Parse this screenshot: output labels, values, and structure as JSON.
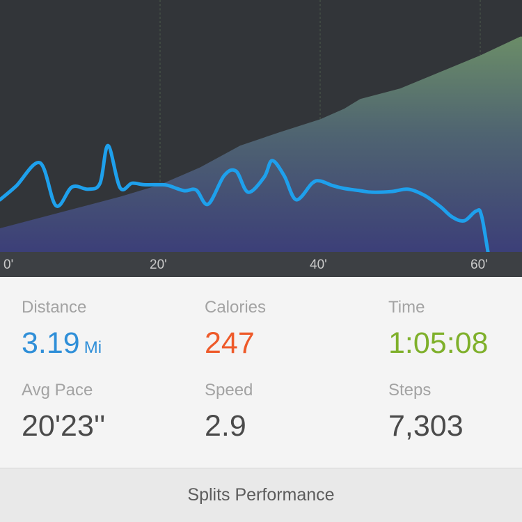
{
  "chart_data": {
    "type": "area",
    "x_ticks": [
      "0'",
      "20'",
      "40'",
      "60'"
    ],
    "xlim": [
      0,
      65
    ],
    "colors": {
      "pace_line": "#1ea0ec",
      "area_top": "#6b8d68",
      "area_bottom": "#3c3f78",
      "background": "#323539"
    },
    "series": [
      {
        "kind": "line",
        "x": [
          0,
          2,
          5,
          7,
          9,
          11,
          12.5,
          13.5,
          15,
          16.5,
          18,
          20,
          21,
          23,
          24.5,
          26,
          28,
          29.5,
          31,
          33,
          34,
          35.5,
          37,
          39,
          40,
          41.5,
          43,
          45,
          46.5,
          49,
          51,
          53,
          55,
          56.5,
          58,
          59.5,
          60.2,
          61.5,
          62.5,
          64,
          65
        ],
        "y": [
          0.38,
          0.56,
          0.87,
          0.3,
          0.55,
          0.52,
          0.6,
          1.1,
          0.54,
          0.6,
          0.58,
          0.58,
          0.57,
          0.5,
          0.51,
          0.32,
          0.7,
          0.76,
          0.48,
          0.68,
          0.9,
          0.7,
          0.38,
          0.6,
          0.63,
          0.57,
          0.53,
          0.5,
          0.48,
          0.49,
          0.52,
          0.44,
          0.29,
          0.15,
          0.1,
          0.23,
          0.15,
          -0.6,
          -0.61,
          -0.52,
          -0.5
        ]
      },
      {
        "kind": "area",
        "x": [
          0,
          5,
          10,
          15,
          20,
          25,
          30,
          35,
          40,
          43,
          45,
          50,
          55,
          60,
          65
        ],
        "y": [
          0.0,
          0.14,
          0.28,
          0.42,
          0.58,
          0.81,
          1.1,
          1.28,
          1.45,
          1.59,
          1.72,
          1.86,
          2.08,
          2.3,
          2.55
        ]
      }
    ]
  },
  "stats": [
    {
      "label": "Distance",
      "value": "3.19",
      "unit": "Mi",
      "color": "#2f8fd8"
    },
    {
      "label": "Calories",
      "value": "247",
      "unit": "",
      "color": "#ee5a2a"
    },
    {
      "label": "Time",
      "value": "1:05:08",
      "unit": "",
      "color": "#7fb02b"
    },
    {
      "label": "Avg Pace",
      "value": "20'23''",
      "unit": "",
      "color": "#4a4a4a"
    },
    {
      "label": "Speed",
      "value": "2.9",
      "unit": "",
      "color": "#4a4a4a"
    },
    {
      "label": "Steps",
      "value": "7,303",
      "unit": "",
      "color": "#4a4a4a"
    }
  ],
  "footer": {
    "splits_label": "Splits Performance"
  }
}
